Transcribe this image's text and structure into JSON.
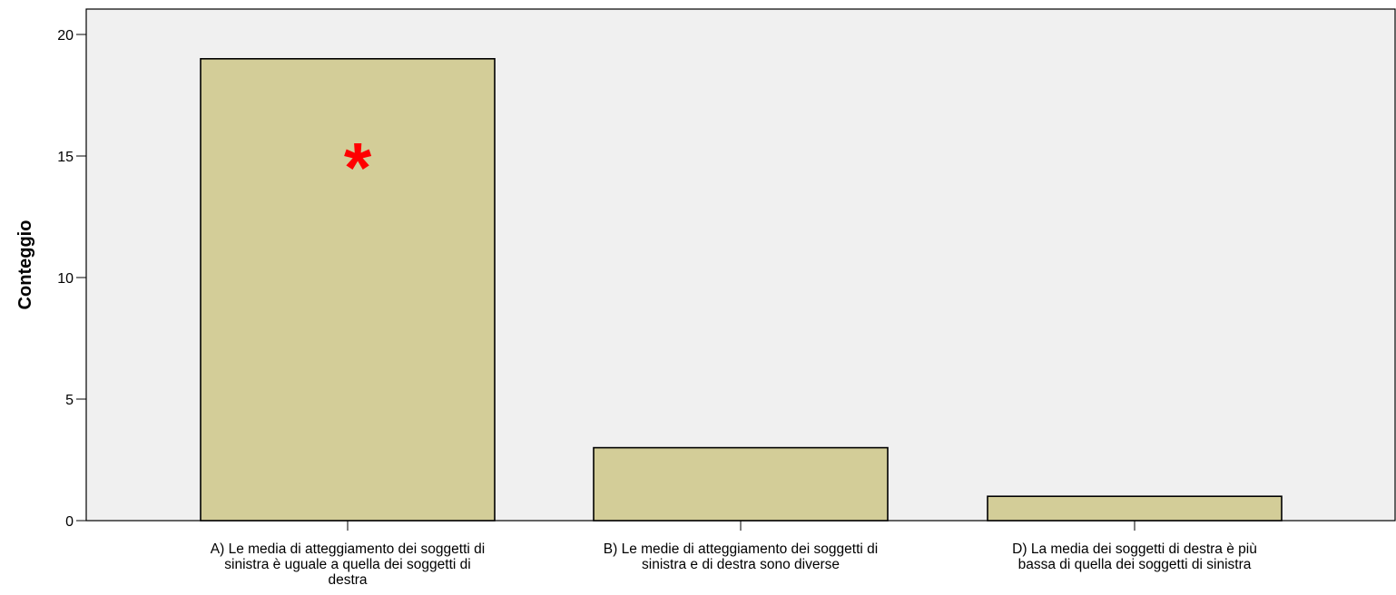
{
  "chart_data": {
    "type": "bar",
    "title": "",
    "xlabel": "",
    "ylabel": "Conteggio",
    "ylim": [
      0,
      20
    ],
    "yticks": [
      0,
      5,
      10,
      15,
      20
    ],
    "grid": false,
    "categories": [
      [
        "A) Le media di atteggiamento dei soggetti di",
        "sinistra è uguale a quella dei soggetti di",
        "destra"
      ],
      [
        "B) Le medie di atteggiamento dei soggetti di",
        "sinistra e di destra sono diverse"
      ],
      [
        "D) La media dei soggetti di destra è più",
        "bassa di quella dei soggetti di sinistra"
      ]
    ],
    "values": [
      19,
      3,
      1
    ],
    "annotations": [
      {
        "text": "*",
        "category_index": 0,
        "y": 15.2,
        "color": "#ff0000"
      }
    ],
    "colors": {
      "bar_fill": "#d3cd98",
      "bar_stroke": "#000000",
      "plot_background": "#f0f0f0"
    }
  }
}
